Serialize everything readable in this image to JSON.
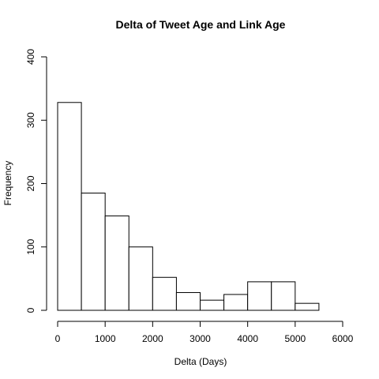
{
  "chart_data": {
    "type": "bar",
    "subtype": "histogram",
    "title": "Delta of Tweet Age and Link Age",
    "xlabel": "Delta (Days)",
    "ylabel": "Frequency",
    "bin_edges": [
      0,
      500,
      1000,
      1500,
      2000,
      2500,
      3000,
      3500,
      4000,
      4500,
      5000,
      5500
    ],
    "values": [
      328,
      185,
      149,
      100,
      52,
      28,
      16,
      25,
      45,
      45,
      11
    ],
    "xlim": [
      0,
      6000
    ],
    "ylim": [
      0,
      400
    ],
    "x_ticks": [
      0,
      1000,
      2000,
      3000,
      4000,
      5000,
      6000
    ],
    "x_tick_labels": [
      "0",
      "1000",
      "2000",
      "3000",
      "4000",
      "5000",
      "6000"
    ],
    "y_ticks": [
      0,
      100,
      200,
      300,
      400
    ],
    "y_tick_labels": [
      "0",
      "100",
      "200",
      "300",
      "400"
    ],
    "grid": false,
    "legend": "none",
    "bar_fill": "#ffffff",
    "bar_stroke": "#000000"
  }
}
